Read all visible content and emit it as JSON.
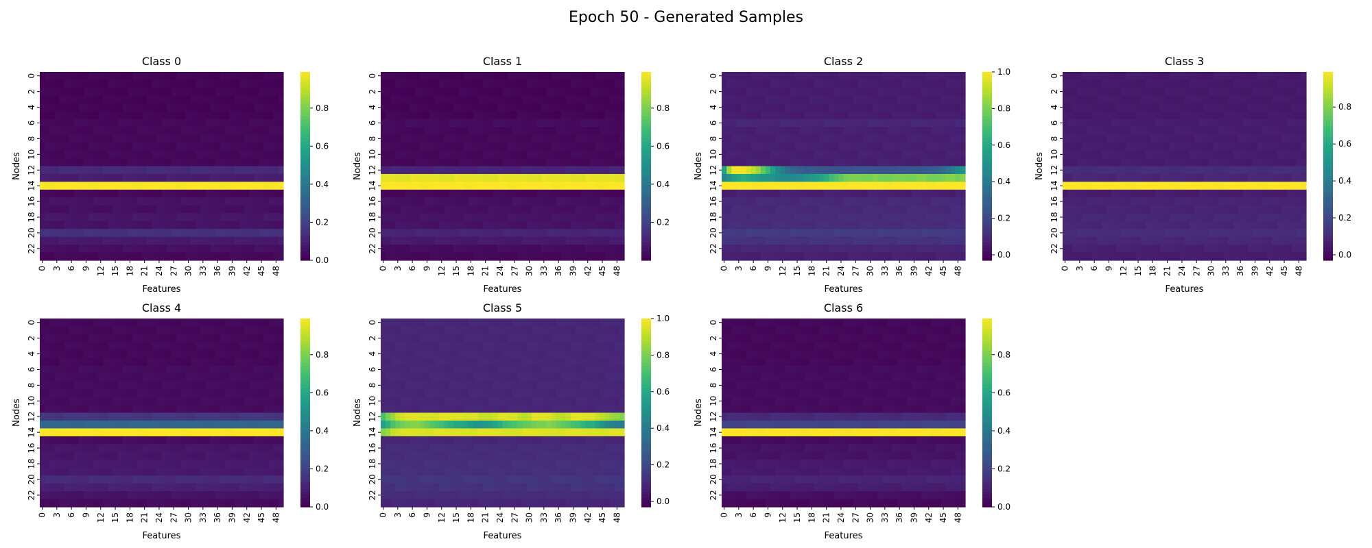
{
  "figure": {
    "title": "Epoch 50 - Generated Samples"
  },
  "chart_data": [
    {
      "type": "heatmap",
      "title": "Class 0",
      "xlabel": "Features",
      "ylabel": "Nodes",
      "rows": 24,
      "cols": 50,
      "x_ticks": [
        "0",
        "3",
        "6",
        "9",
        "12",
        "15",
        "18",
        "21",
        "24",
        "27",
        "30",
        "33",
        "36",
        "39",
        "42",
        "45",
        "48"
      ],
      "y_ticks": [
        "0",
        "2",
        "4",
        "6",
        "8",
        "10",
        "12",
        "14",
        "16",
        "18",
        "20",
        "22"
      ],
      "colorbar_ticks": [
        "0.0",
        "0.2",
        "0.4",
        "0.6",
        "0.8"
      ],
      "colorbar_range": [
        0.0,
        0.99
      ],
      "colormap": "viridis",
      "row_values": [
        0.01,
        0.01,
        0.01,
        0.01,
        0.01,
        0.01,
        0.02,
        0.02,
        0.02,
        0.02,
        0.02,
        0.02,
        0.12,
        0.08,
        0.99,
        0.02,
        0.05,
        0.04,
        0.06,
        0.05,
        0.14,
        0.07,
        0.04,
        0.02
      ],
      "highlight_segments": []
    },
    {
      "type": "heatmap",
      "title": "Class 1",
      "xlabel": "Features",
      "ylabel": "Nodes",
      "rows": 24,
      "cols": 50,
      "x_ticks": [
        "0",
        "3",
        "6",
        "9",
        "12",
        "15",
        "18",
        "21",
        "24",
        "27",
        "30",
        "33",
        "36",
        "39",
        "42",
        "45",
        "48"
      ],
      "y_ticks": [
        "0",
        "2",
        "4",
        "6",
        "8",
        "10",
        "12",
        "14",
        "16",
        "18",
        "20",
        "22"
      ],
      "colorbar_ticks": [
        "0.2",
        "0.4",
        "0.6",
        "0.8"
      ],
      "colorbar_range": [
        0.0,
        0.99
      ],
      "colormap": "viridis",
      "row_values": [
        0.01,
        0.01,
        0.01,
        0.01,
        0.01,
        0.01,
        0.03,
        0.02,
        0.02,
        0.02,
        0.02,
        0.02,
        0.1,
        0.95,
        0.99,
        0.02,
        0.04,
        0.04,
        0.05,
        0.05,
        0.1,
        0.07,
        0.03,
        0.02
      ],
      "highlight_segments": []
    },
    {
      "type": "heatmap",
      "title": "Class 2",
      "xlabel": "Features",
      "ylabel": "Nodes",
      "rows": 24,
      "cols": 50,
      "x_ticks": [
        "0",
        "3",
        "6",
        "9",
        "12",
        "15",
        "18",
        "21",
        "24",
        "27",
        "30",
        "33",
        "36",
        "39",
        "42",
        "45",
        "48"
      ],
      "y_ticks": [
        "0",
        "2",
        "4",
        "6",
        "8",
        "10",
        "12",
        "14",
        "16",
        "18",
        "20",
        "22"
      ],
      "colorbar_ticks": [
        "0.0",
        "0.2",
        "0.4",
        "0.6",
        "0.8",
        "1.0"
      ],
      "colorbar_range": [
        -0.03,
        1.0
      ],
      "colormap": "viridis",
      "row_values": [
        0.05,
        0.05,
        0.05,
        0.05,
        0.05,
        0.05,
        0.08,
        0.06,
        0.06,
        0.06,
        0.06,
        0.06,
        0.2,
        0.7,
        1.0,
        0.06,
        0.09,
        0.09,
        0.1,
        0.1,
        0.15,
        0.12,
        0.08,
        0.06
      ],
      "highlight_segments": [
        {
          "row": 12,
          "values": [
            0.55,
            0.85,
            0.98,
            0.98,
            0.98,
            0.95,
            0.9,
            0.85,
            0.75,
            0.65,
            0.55,
            0.45,
            0.4,
            0.35,
            0.32,
            0.3,
            0.28,
            0.27,
            0.26,
            0.25,
            0.25,
            0.24,
            0.24,
            0.24,
            0.24,
            0.24,
            0.24,
            0.24,
            0.24,
            0.24,
            0.24,
            0.24,
            0.24,
            0.24,
            0.24,
            0.24,
            0.24,
            0.24,
            0.24,
            0.25,
            0.25,
            0.26,
            0.27,
            0.28,
            0.3,
            0.32,
            0.35,
            0.4,
            0.45,
            0.5
          ]
        },
        {
          "row": 13,
          "values": [
            0.45,
            0.5,
            0.55,
            0.6,
            0.6,
            0.58,
            0.55,
            0.52,
            0.5,
            0.5,
            0.5,
            0.48,
            0.46,
            0.45,
            0.45,
            0.46,
            0.48,
            0.5,
            0.52,
            0.55,
            0.58,
            0.62,
            0.66,
            0.7,
            0.74,
            0.78,
            0.8,
            0.8,
            0.8,
            0.8,
            0.8,
            0.8,
            0.78,
            0.78,
            0.78,
            0.8,
            0.8,
            0.8,
            0.8,
            0.8,
            0.8,
            0.8,
            0.78,
            0.78,
            0.78,
            0.8,
            0.82,
            0.82,
            0.8,
            0.8
          ]
        }
      ]
    },
    {
      "type": "heatmap",
      "title": "Class 3",
      "xlabel": "Features",
      "ylabel": "Nodes",
      "rows": 24,
      "cols": 50,
      "x_ticks": [
        "0",
        "3",
        "6",
        "9",
        "12",
        "15",
        "18",
        "21",
        "24",
        "27",
        "30",
        "33",
        "36",
        "39",
        "42",
        "45",
        "48"
      ],
      "y_ticks": [
        "0",
        "2",
        "4",
        "6",
        "8",
        "10",
        "12",
        "14",
        "16",
        "18",
        "20",
        "22"
      ],
      "colorbar_ticks": [
        "0.0",
        "0.2",
        "0.4",
        "0.6",
        "0.8"
      ],
      "colorbar_range": [
        -0.03,
        0.99
      ],
      "colormap": "viridis",
      "row_values": [
        0.04,
        0.04,
        0.04,
        0.04,
        0.04,
        0.04,
        0.05,
        0.05,
        0.05,
        0.05,
        0.05,
        0.05,
        0.1,
        0.08,
        0.99,
        0.05,
        0.07,
        0.07,
        0.08,
        0.08,
        0.1,
        0.08,
        0.06,
        0.05
      ],
      "highlight_segments": []
    },
    {
      "type": "heatmap",
      "title": "Class 4",
      "xlabel": "Features",
      "ylabel": "Nodes",
      "rows": 24,
      "cols": 50,
      "x_ticks": [
        "0",
        "3",
        "6",
        "9",
        "12",
        "15",
        "18",
        "21",
        "24",
        "27",
        "30",
        "33",
        "36",
        "39",
        "42",
        "45",
        "48"
      ],
      "y_ticks": [
        "0",
        "2",
        "4",
        "6",
        "8",
        "10",
        "12",
        "14",
        "16",
        "18",
        "20",
        "22"
      ],
      "colorbar_ticks": [
        "0.0",
        "0.2",
        "0.4",
        "0.6",
        "0.8"
      ],
      "colorbar_range": [
        0.0,
        0.99
      ],
      "colormap": "viridis",
      "row_values": [
        0.02,
        0.02,
        0.02,
        0.02,
        0.02,
        0.02,
        0.03,
        0.03,
        0.03,
        0.03,
        0.03,
        0.03,
        0.16,
        0.32,
        0.99,
        0.03,
        0.06,
        0.06,
        0.07,
        0.07,
        0.12,
        0.09,
        0.05,
        0.03
      ],
      "highlight_segments": []
    },
    {
      "type": "heatmap",
      "title": "Class 5",
      "xlabel": "Features",
      "ylabel": "Nodes",
      "rows": 24,
      "cols": 50,
      "x_ticks": [
        "0",
        "3",
        "6",
        "9",
        "12",
        "15",
        "18",
        "21",
        "24",
        "27",
        "30",
        "33",
        "36",
        "39",
        "42",
        "45",
        "48"
      ],
      "y_ticks": [
        "0",
        "2",
        "4",
        "6",
        "8",
        "10",
        "12",
        "14",
        "16",
        "18",
        "20",
        "22"
      ],
      "colorbar_ticks": [
        "0.0",
        "0.2",
        "0.4",
        "0.6",
        "0.8",
        "1.0"
      ],
      "colorbar_range": [
        -0.03,
        1.0
      ],
      "colormap": "viridis",
      "row_values": [
        0.08,
        0.08,
        0.08,
        0.08,
        0.08,
        0.08,
        0.08,
        0.08,
        0.08,
        0.08,
        0.08,
        0.08,
        0.95,
        0.8,
        0.95,
        0.08,
        0.1,
        0.1,
        0.11,
        0.11,
        0.13,
        0.12,
        0.1,
        0.08
      ],
      "highlight_segments": [
        {
          "row": 12,
          "values": [
            0.7,
            0.8,
            0.85,
            0.9,
            0.92,
            0.95,
            0.95,
            0.95,
            0.95,
            0.95,
            0.95,
            0.95,
            0.95,
            0.95,
            0.95,
            0.95,
            0.95,
            0.95,
            0.95,
            0.95,
            0.92,
            0.9,
            0.9,
            0.92,
            0.95,
            0.95,
            0.95,
            0.95,
            0.92,
            0.9,
            0.9,
            0.95,
            0.95,
            0.95,
            0.95,
            0.92,
            0.9,
            0.9,
            0.92,
            0.95,
            0.95,
            0.95,
            0.95,
            0.95,
            0.92,
            0.9,
            0.88,
            0.85,
            0.82,
            0.8
          ]
        },
        {
          "row": 13,
          "values": [
            0.55,
            0.62,
            0.7,
            0.75,
            0.78,
            0.8,
            0.82,
            0.8,
            0.78,
            0.75,
            0.72,
            0.7,
            0.68,
            0.65,
            0.62,
            0.6,
            0.58,
            0.55,
            0.52,
            0.5,
            0.5,
            0.52,
            0.55,
            0.58,
            0.62,
            0.65,
            0.68,
            0.7,
            0.72,
            0.74,
            0.76,
            0.78,
            0.8,
            0.8,
            0.8,
            0.78,
            0.76,
            0.74,
            0.72,
            0.7,
            0.68,
            0.65,
            0.62,
            0.6,
            0.55,
            0.5,
            0.45,
            0.42,
            0.4,
            0.4
          ]
        },
        {
          "row": 14,
          "values": [
            0.82,
            0.86,
            0.9,
            0.92,
            0.94,
            0.95,
            0.95,
            0.95,
            0.95,
            0.95,
            0.95,
            0.95,
            0.95,
            0.95,
            0.95,
            0.95,
            0.95,
            0.95,
            0.95,
            0.95,
            0.95,
            0.95,
            0.95,
            0.95,
            0.95,
            0.95,
            0.95,
            0.95,
            0.95,
            0.95,
            0.95,
            0.95,
            0.95,
            0.95,
            0.95,
            0.95,
            0.95,
            0.95,
            0.95,
            0.95,
            0.95,
            0.95,
            0.95,
            0.95,
            0.95,
            0.95,
            0.95,
            0.95,
            0.95,
            0.95
          ]
        }
      ]
    },
    {
      "type": "heatmap",
      "title": "Class 6",
      "xlabel": "Features",
      "ylabel": "Nodes",
      "rows": 24,
      "cols": 50,
      "x_ticks": [
        "0",
        "3",
        "6",
        "9",
        "12",
        "15",
        "18",
        "21",
        "24",
        "27",
        "30",
        "33",
        "36",
        "39",
        "42",
        "45",
        "48"
      ],
      "y_ticks": [
        "0",
        "2",
        "4",
        "6",
        "8",
        "10",
        "12",
        "14",
        "16",
        "18",
        "20",
        "22"
      ],
      "colorbar_ticks": [
        "0.0",
        "0.2",
        "0.4",
        "0.6",
        "0.8"
      ],
      "colorbar_range": [
        0.0,
        0.99
      ],
      "colormap": "viridis",
      "row_values": [
        0.02,
        0.02,
        0.02,
        0.02,
        0.02,
        0.02,
        0.03,
        0.03,
        0.03,
        0.03,
        0.03,
        0.03,
        0.12,
        0.2,
        0.99,
        0.03,
        0.05,
        0.05,
        0.07,
        0.07,
        0.1,
        0.08,
        0.04,
        0.02
      ],
      "highlight_segments": []
    }
  ]
}
